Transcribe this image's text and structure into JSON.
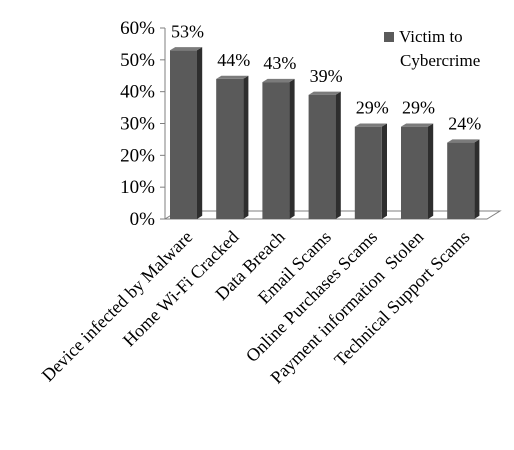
{
  "chart_data": {
    "type": "bar",
    "categories": [
      "Device infected by Malware",
      "Home Wi-Fi Cracked",
      "Data Breach",
      "Email Scams",
      "Online Purchases Scams",
      "Payment information  Stolen",
      "Technical Support Scams"
    ],
    "series": [
      {
        "name": "Victim to Cybercrime",
        "values": [
          53,
          44,
          43,
          39,
          29,
          29,
          24
        ]
      }
    ],
    "data_labels": [
      "53%",
      "44%",
      "43%",
      "39%",
      "29%",
      "29%",
      "24%"
    ],
    "yticks": [
      "0%",
      "10%",
      "20%",
      "30%",
      "40%",
      "50%",
      "60%"
    ],
    "ylim": [
      0,
      60
    ],
    "grid": false,
    "legend": {
      "position": "top-right",
      "lines": [
        "Victim to",
        "Cybercrime"
      ]
    },
    "style": "3d",
    "colors": {
      "bar_front": "#5a5a5a",
      "bar_side": "#2e2e2e",
      "bar_top": "#7b7b7b",
      "floor": "#ffffff",
      "axis": "#7f7f7f"
    }
  }
}
